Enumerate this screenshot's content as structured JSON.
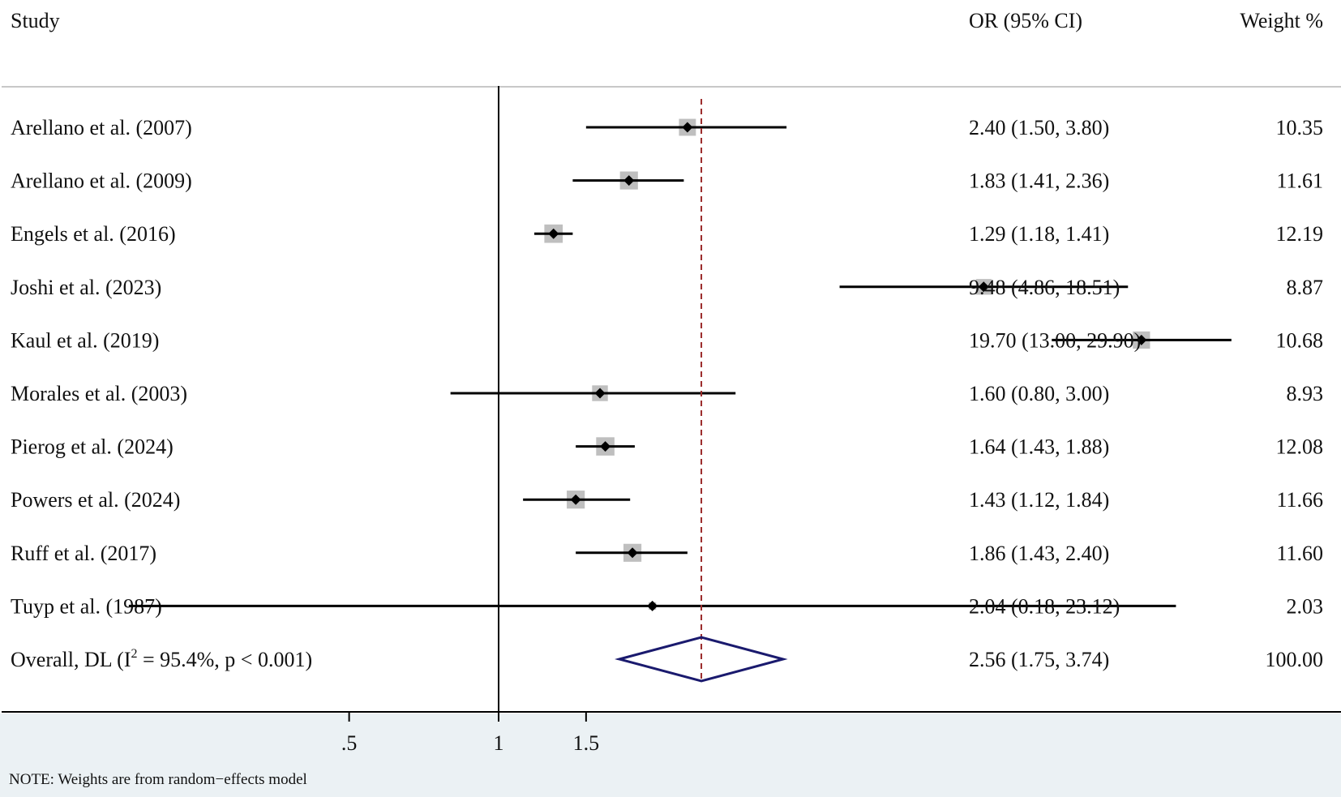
{
  "chart_data": {
    "type": "forest",
    "headers": {
      "study": "Study",
      "effect": "OR (95% CI)",
      "weight": "Weight %"
    },
    "scale": "log",
    "null_value": 1,
    "x_ticks": [
      {
        "value": 0.5,
        "label": ".5"
      },
      {
        "value": 1,
        "label": "1"
      },
      {
        "value": 1.5,
        "label": "1.5"
      }
    ],
    "studies": [
      {
        "name": "Arellano et al. (2007)",
        "or": 2.4,
        "lo": 1.5,
        "hi": 3.8,
        "ci_text": "2.40 (1.50, 3.80)",
        "weight": "10.35",
        "w": 10.35
      },
      {
        "name": "Arellano et al. (2009)",
        "or": 1.83,
        "lo": 1.41,
        "hi": 2.36,
        "ci_text": "1.83 (1.41, 2.36)",
        "weight": "11.61",
        "w": 11.61
      },
      {
        "name": "Engels et al. (2016)",
        "or": 1.29,
        "lo": 1.18,
        "hi": 1.41,
        "ci_text": "1.29 (1.18, 1.41)",
        "weight": "12.19",
        "w": 12.19
      },
      {
        "name": "Joshi et al. (2023)",
        "or": 9.48,
        "lo": 4.86,
        "hi": 18.51,
        "ci_text": "9.48 (4.86, 18.51)",
        "weight": "8.87",
        "w": 8.87
      },
      {
        "name": "Kaul et al. (2019)",
        "or": 19.7,
        "lo": 13.0,
        "hi": 29.9,
        "ci_text": "19.70 (13.00, 29.90)",
        "weight": "10.68",
        "w": 10.68
      },
      {
        "name": "Morales et al. (2003)",
        "or": 1.6,
        "lo": 0.8,
        "hi": 3.0,
        "ci_text": "1.60 (0.80, 3.00)",
        "weight": "8.93",
        "w": 8.93
      },
      {
        "name": "Pierog et al. (2024)",
        "or": 1.64,
        "lo": 1.43,
        "hi": 1.88,
        "ci_text": "1.64 (1.43, 1.88)",
        "weight": "12.08",
        "w": 12.08
      },
      {
        "name": "Powers et al. (2024)",
        "or": 1.43,
        "lo": 1.12,
        "hi": 1.84,
        "ci_text": "1.43 (1.12, 1.84)",
        "weight": "11.66",
        "w": 11.66
      },
      {
        "name": "Ruff et al. (2017)",
        "or": 1.86,
        "lo": 1.43,
        "hi": 2.4,
        "ci_text": "1.86 (1.43, 2.40)",
        "weight": "11.60",
        "w": 11.6
      },
      {
        "name": "Tuyp et al. (1987)",
        "or": 2.04,
        "lo": 0.18,
        "hi": 23.12,
        "ci_text": "2.04 (0.18, 23.12)",
        "weight": "2.03",
        "w": 2.03
      }
    ],
    "overall": {
      "label_prefix": "Overall, DL (I",
      "label_sup": "2",
      "label_suffix": " = 95.4%, p < 0.001)",
      "or": 2.56,
      "lo": 1.75,
      "hi": 3.74,
      "ci_text": "2.56 (1.75, 3.74)",
      "weight": "100.00"
    },
    "colors": {
      "weight_box": "#bfbfbf",
      "point": "#000000",
      "ci_line": "#000000",
      "diamond": "#1a1a6e",
      "overall_line": "#9b2a2a",
      "null_line": "#000000",
      "rule": "#c8c8c8"
    }
  },
  "footnote": "NOTE: Weights are from random−effects model"
}
